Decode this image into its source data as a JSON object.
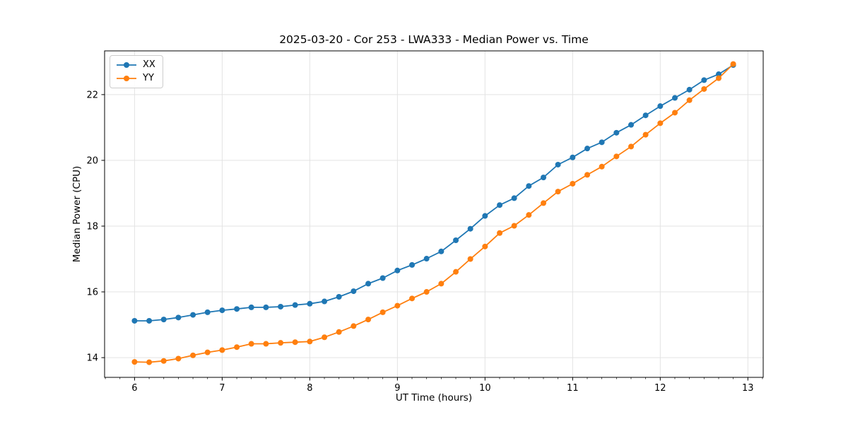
{
  "chart_data": {
    "type": "line",
    "title": "2025-03-20 - Cor 253 - LWA333 - Median Power vs. Time",
    "xlabel": "UT Time (hours)",
    "ylabel": "Median Power (CPU)",
    "xlim": [
      5.658,
      13.175
    ],
    "ylim": [
      13.4,
      23.33
    ],
    "xticks": [
      6,
      7,
      8,
      9,
      10,
      11,
      12,
      13
    ],
    "yticks": [
      14,
      16,
      18,
      20,
      22
    ],
    "x_minor_step": 0.1666667,
    "grid": true,
    "grid_color": "#e3e3e3",
    "legend_position": "upper-left",
    "x": [
      6.0,
      6.167,
      6.333,
      6.5,
      6.667,
      6.833,
      7.0,
      7.167,
      7.333,
      7.5,
      7.667,
      7.833,
      8.0,
      8.167,
      8.333,
      8.5,
      8.667,
      8.833,
      9.0,
      9.167,
      9.333,
      9.5,
      9.667,
      9.833,
      10.0,
      10.167,
      10.333,
      10.5,
      10.667,
      10.833,
      11.0,
      11.167,
      11.333,
      11.5,
      11.667,
      11.833,
      12.0,
      12.167,
      12.333,
      12.5,
      12.667,
      12.833
    ],
    "series": [
      {
        "name": "XX",
        "color": "#1f77b4",
        "marker": "circle",
        "values": [
          15.12,
          15.12,
          15.16,
          15.22,
          15.3,
          15.38,
          15.44,
          15.48,
          15.53,
          15.53,
          15.55,
          15.6,
          15.64,
          15.71,
          15.85,
          16.02,
          16.25,
          16.42,
          16.65,
          16.82,
          17.01,
          17.23,
          17.57,
          17.92,
          18.31,
          18.64,
          18.85,
          19.22,
          19.48,
          19.87,
          20.09,
          20.36,
          20.55,
          20.84,
          21.08,
          21.37,
          21.65,
          21.9,
          22.15,
          22.44,
          22.62,
          22.9
        ]
      },
      {
        "name": "YY",
        "color": "#ff7f0e",
        "marker": "circle",
        "values": [
          13.87,
          13.86,
          13.9,
          13.97,
          14.07,
          14.16,
          14.23,
          14.32,
          14.42,
          14.42,
          14.45,
          14.47,
          14.49,
          14.62,
          14.78,
          14.96,
          15.16,
          15.38,
          15.58,
          15.8,
          16.0,
          16.25,
          16.61,
          17.0,
          17.38,
          17.79,
          18.01,
          18.34,
          18.7,
          19.05,
          19.29,
          19.56,
          19.81,
          20.12,
          20.42,
          20.78,
          21.13,
          21.45,
          21.83,
          22.17,
          22.5,
          22.93
        ]
      }
    ]
  }
}
